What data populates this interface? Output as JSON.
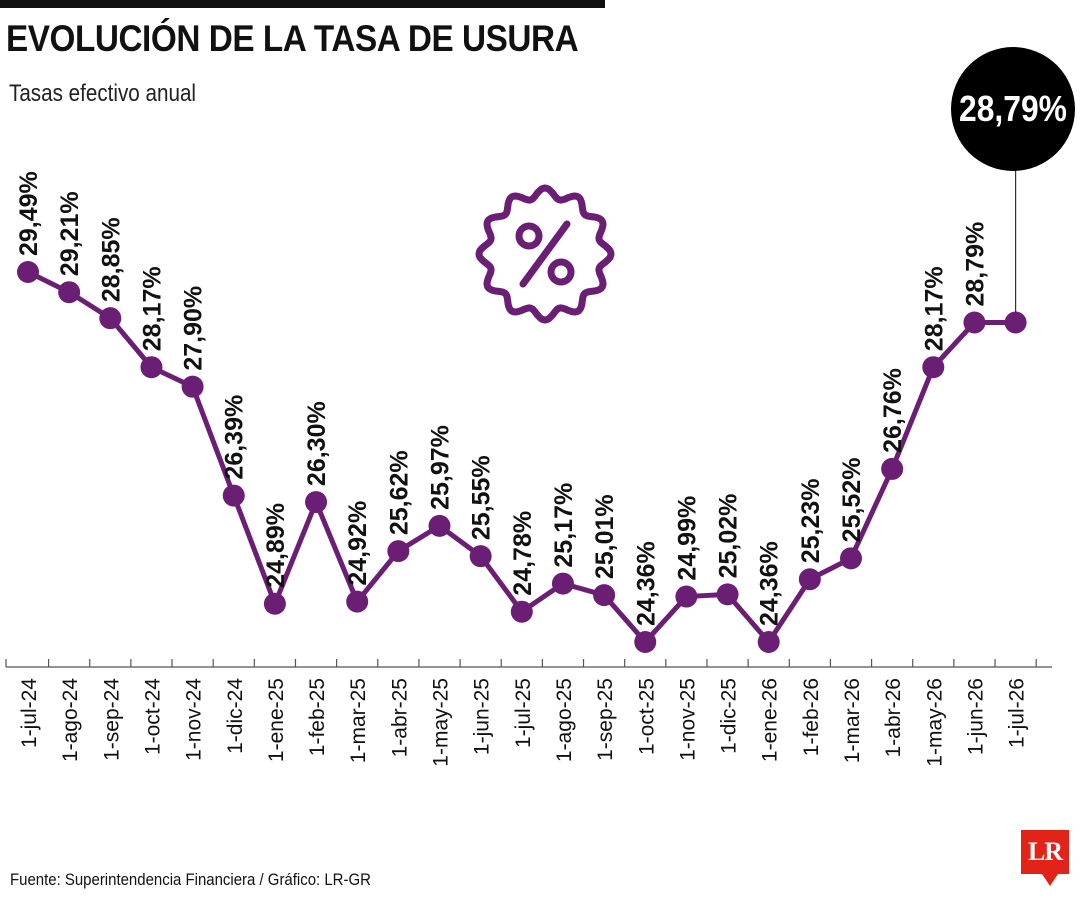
{
  "header": {
    "title": "EVOLUCIÓN DE LA TASA DE USURA",
    "subtitle": "Tasas efectivo anual"
  },
  "callout": {
    "value_label": "28,79%"
  },
  "footer": {
    "source": "Fuente: Superintendencia Financiera / Gráfico: LR-GR"
  },
  "logo": {
    "text": "LR"
  },
  "colors": {
    "series": "#6b1f74",
    "callout_bg": "#000000",
    "callout_text": "#ffffff",
    "logo_bg": "#e2231a"
  },
  "icons": {
    "badge": "percent-badge-icon"
  },
  "chart_data": {
    "type": "line",
    "categories": [
      "1-jul-24",
      "1-ago-24",
      "1-sep-24",
      "1-oct-24",
      "1-nov-24",
      "1-dic-24",
      "1-ene-25",
      "1-feb-25",
      "1-mar-25",
      "1-abr-25",
      "1-may-25",
      "1-jun-25",
      "1-jul-25",
      "1-ago-25",
      "1-sep-25",
      "1-oct-25",
      "1-nov-25",
      "1-dic-25",
      "1-ene-26",
      "1-feb-26",
      "1-mar-26",
      "1-abr-26",
      "1-may-26",
      "1-jun-26",
      "1-jul-26"
    ],
    "values": [
      29.49,
      29.21,
      28.85,
      28.17,
      27.9,
      26.39,
      24.89,
      26.3,
      24.92,
      25.62,
      25.97,
      25.55,
      24.78,
      25.17,
      25.01,
      24.36,
      24.99,
      25.02,
      24.36,
      25.23,
      25.52,
      26.76,
      28.17,
      28.79,
      28.79
    ],
    "labels": [
      "29,49%",
      "29,21%",
      "28,85%",
      "28,17%",
      "27,90%",
      "26,39%",
      "24,89%",
      "26,30%",
      "24,92%",
      "25,62%",
      "25,97%",
      "25,55%",
      "24,78%",
      "25,17%",
      "25,01%",
      "24,36%",
      "24,99%",
      "25,02%",
      "24,36%",
      "25,23%",
      "25,52%",
      "26,76%",
      "28,17%",
      "28,79%",
      ""
    ],
    "title": "EVOLUCIÓN DE LA TASA DE USURA",
    "subtitle": "Tasas efectivo anual",
    "xlabel": "",
    "ylabel": "",
    "ylim": [
      23.8,
      30.1
    ],
    "grid": false,
    "legend": "none"
  }
}
